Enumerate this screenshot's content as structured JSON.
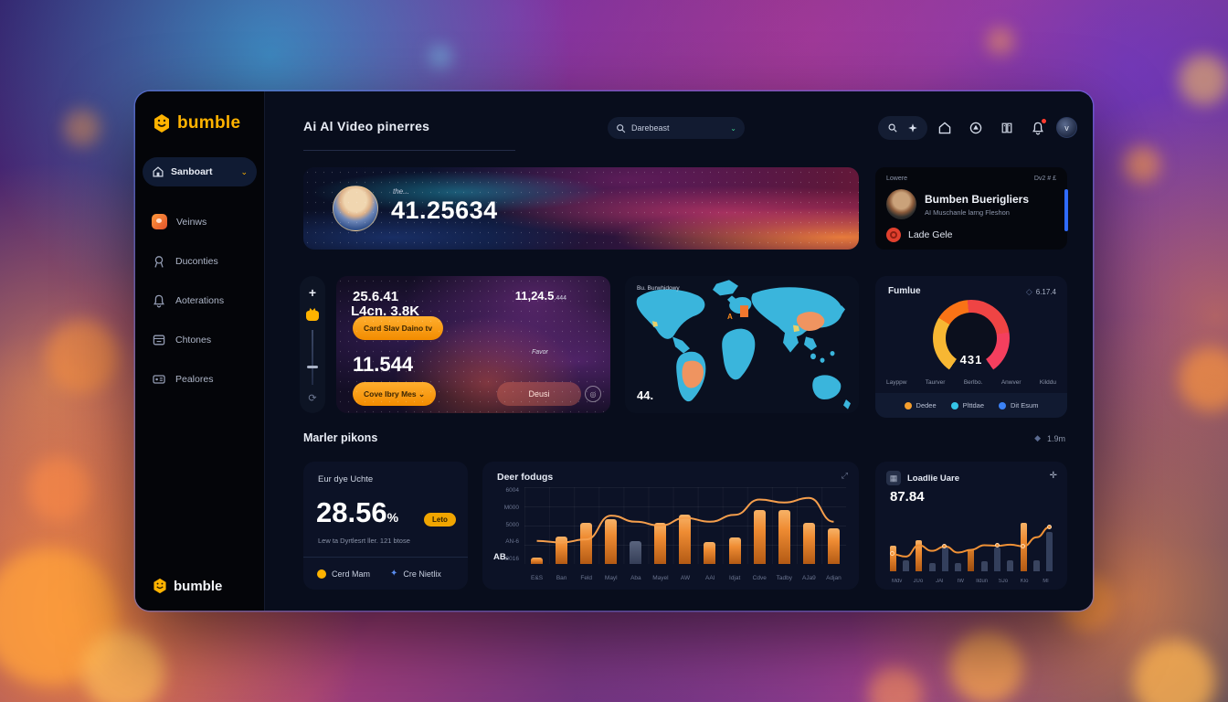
{
  "app": {
    "accent_orange": "#f28c00",
    "accent_yellow": "#ffb300",
    "accent_cyan": "#35c5e8",
    "accent_blue": "#3b82f6",
    "accent_red": "#ef4444"
  },
  "glyphs": {
    "plus": "+",
    "chevron": "⌄",
    "refresh": "⟳",
    "diamond": "◆",
    "diamond_small": "◇",
    "star": "✦",
    "expand": "⤢",
    "cross": "✛",
    "circle_c": "◎",
    "grid": "▦",
    "avatar_initial": "v"
  },
  "sidebar": {
    "logo_text": "bumble",
    "active_item": {
      "label": "Sanboart"
    },
    "items": [
      {
        "label": "Veinws"
      },
      {
        "label": "Duconties"
      },
      {
        "label": "Aoterations"
      },
      {
        "label": "Chtones"
      },
      {
        "label": "Pealores"
      }
    ],
    "footer_logo_text": "bumble"
  },
  "header": {
    "title": "Ai  Al Video pinerres",
    "search_value": "Darebeast"
  },
  "hero": {
    "caption": "the...",
    "value": "41.25634"
  },
  "profile_card": {
    "header_left": "Lowere",
    "header_right": "Dv2 # £",
    "name": "Bumben Buerigliers",
    "subtitle": "AI Muschanle larng Fleshon",
    "list_item": "Lade Gele"
  },
  "stats_card": {
    "stat_top": "25.6.41",
    "button_top": "Card Slav Daino   tv",
    "stat_right": "11,24.5",
    "stat_right_suffix": ".444",
    "stat_bottom": "11.544",
    "button_bottom": "Cove Ibry Mes   ⌄",
    "mini_label": "Favor",
    "mini_value": "L4cn. 3.8K",
    "button_ghost": "Deusi"
  },
  "map_card": {
    "label": "Bu.  Burwhidowy",
    "value": "44.",
    "marker": "A"
  },
  "gauge_card": {
    "title": "Fumlue",
    "meta": "6.17.4",
    "ticks": [
      "Layppw",
      "Taurver",
      "Berlbo.",
      "Anwver",
      "Kilddu"
    ],
    "legend": [
      {
        "label": "Dedee",
        "dot_style": "background:#f59e2d"
      },
      {
        "label": "Plttdae",
        "dot_style": "background:#35c5e8"
      },
      {
        "label": "Dit Esum",
        "dot_style": "background:#3b82f6"
      }
    ]
  },
  "section": {
    "title": "Marler pikons",
    "meta": "1.9m"
  },
  "rate_card": {
    "title": "Eur dye Uchte",
    "value": "28.56",
    "unit": "%",
    "badge": "Leto",
    "subtitle": "Lew ta Dyrtlesrt ller. 121 btose",
    "footer_left": "Cerd Mam",
    "footer_right": "Cre Nietlix"
  },
  "chart_data": [
    {
      "id": "main-combo-chart",
      "type": "bar+line",
      "title": "Deer fodugs",
      "categories": [
        "E&S",
        "Ban",
        "Feld",
        "Mayl",
        "Aba",
        "Mayel",
        "AW",
        "AAl",
        "Idjat",
        "Cdve",
        "Tadby",
        "AJa9",
        "Adjan"
      ],
      "bar_values": [
        8,
        36,
        54,
        58,
        30,
        54,
        64,
        28,
        34,
        70,
        70,
        54,
        46
      ],
      "gray_indexes": [
        4
      ],
      "line_values": [
        30,
        28,
        32,
        63,
        55,
        50,
        60,
        55,
        64,
        84,
        80,
        86,
        55
      ],
      "y_ticks": [
        "6004",
        "M000",
        "5000",
        "AN-6",
        "A0016"
      ],
      "corner_value": "AB.",
      "ylim": [
        0,
        100
      ],
      "bar_color": "#ef8c33",
      "line_color": "#f59e4c",
      "grid": true,
      "legend_position": "none"
    },
    {
      "id": "mini-combo-chart",
      "type": "bar+line",
      "title": "Loadlie Uare",
      "value": "87.84",
      "categories": [
        "Mdv",
        "JUo",
        "JAl",
        "IW",
        "Ildun",
        "SJo",
        "Klo",
        "Ml"
      ],
      "bar_values": [
        45,
        20,
        55,
        15,
        45,
        15,
        38,
        18,
        42,
        20,
        85,
        20,
        70
      ],
      "bar_classes": [
        "o",
        "s",
        "o",
        "s",
        "d",
        "s",
        "k",
        "s",
        "d",
        "s",
        "o",
        "s",
        "d"
      ],
      "line_values": [
        30,
        26,
        46,
        36,
        44,
        33,
        38,
        46,
        45,
        47,
        44,
        60,
        78
      ],
      "dot_indexes": [
        0,
        4,
        8,
        10,
        12
      ],
      "ylim": [
        0,
        100
      ],
      "line_color": "#f09136",
      "grid": false,
      "legend_position": "none"
    },
    {
      "id": "match-gauge",
      "type": "gauge",
      "center_value": "431",
      "gap_deg": 70,
      "segments": [
        {
          "color": "#f7b733",
          "value": 30
        },
        {
          "color": "#f97316",
          "value": 18
        },
        {
          "color": "#ef4444",
          "value": 30
        },
        {
          "color": "#f43f5e",
          "value": 22
        }
      ]
    }
  ]
}
